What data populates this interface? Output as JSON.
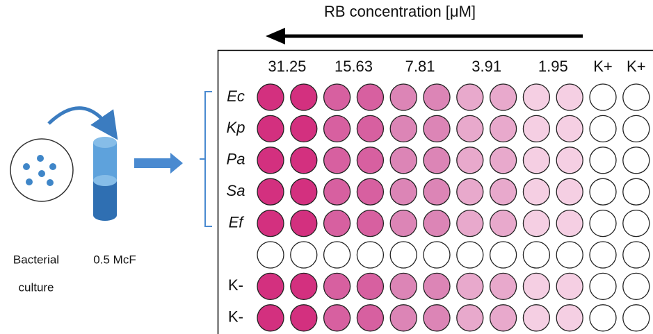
{
  "title": "RB concentration [μM]",
  "left": {
    "culture_label_lines": [
      "Bacterial",
      "culture"
    ],
    "tube_label": "0.5 McF"
  },
  "plate": {
    "column_labels": [
      "31.25",
      "15.63",
      "7.81",
      "3.91",
      "1.95",
      "K+",
      "K+"
    ],
    "well_colors": [
      "#d3307f",
      "#d3307f",
      "#d760a0",
      "#d760a0",
      "#dc85b6",
      "#dc85b6",
      "#e8a9cc",
      "#e8a9cc",
      "#f5cfe3",
      "#f5cfe3",
      "#ffffff",
      "#ffffff"
    ],
    "rows": [
      {
        "label": "Ec",
        "filled": true
      },
      {
        "label": "Kp",
        "filled": true
      },
      {
        "label": "Pa",
        "filled": true
      },
      {
        "label": "Sa",
        "filled": true
      },
      {
        "label": "Ef",
        "filled": true
      },
      {
        "filled": false
      },
      {
        "label": "K-",
        "filled": true
      },
      {
        "label": "K-",
        "filled": true
      }
    ]
  }
}
